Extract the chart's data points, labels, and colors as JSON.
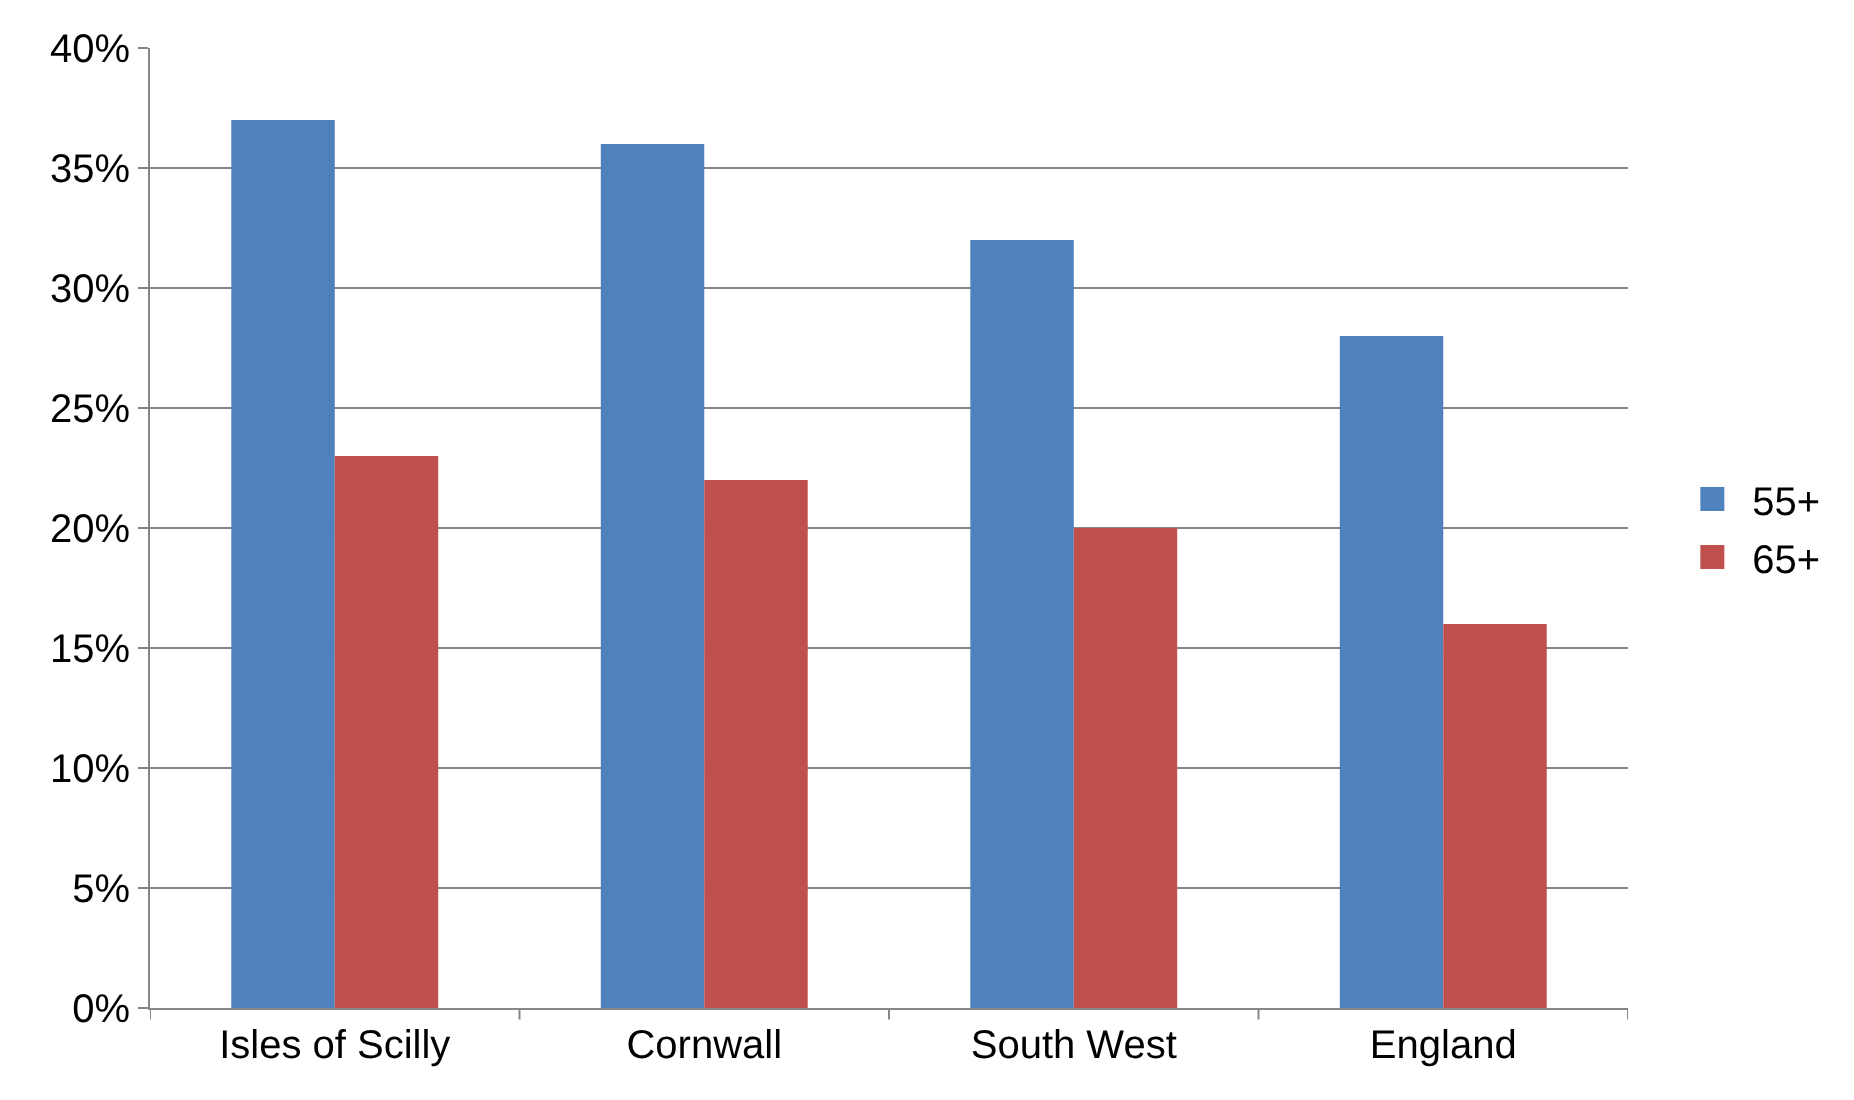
{
  "chart_data": {
    "type": "bar",
    "categories": [
      "Isles of Scilly",
      "Cornwall",
      "South West",
      "England"
    ],
    "series": [
      {
        "name": "55+",
        "color": "#4f81bd",
        "values": [
          37,
          36,
          32,
          28
        ]
      },
      {
        "name": "65+",
        "color": "#c0504d",
        "values": [
          23,
          22,
          20,
          16
        ]
      }
    ],
    "ylim": [
      0,
      40
    ],
    "yticks": [
      {
        "value": 0,
        "label": "0%"
      },
      {
        "value": 5,
        "label": "5%"
      },
      {
        "value": 10,
        "label": "10%"
      },
      {
        "value": 15,
        "label": "15%"
      },
      {
        "value": 20,
        "label": "20%"
      },
      {
        "value": 25,
        "label": "25%"
      },
      {
        "value": 30,
        "label": "30%"
      },
      {
        "value": 35,
        "label": "35%"
      },
      {
        "value": 40,
        "label": "40%"
      }
    ],
    "grid": "y",
    "legend": "right"
  }
}
